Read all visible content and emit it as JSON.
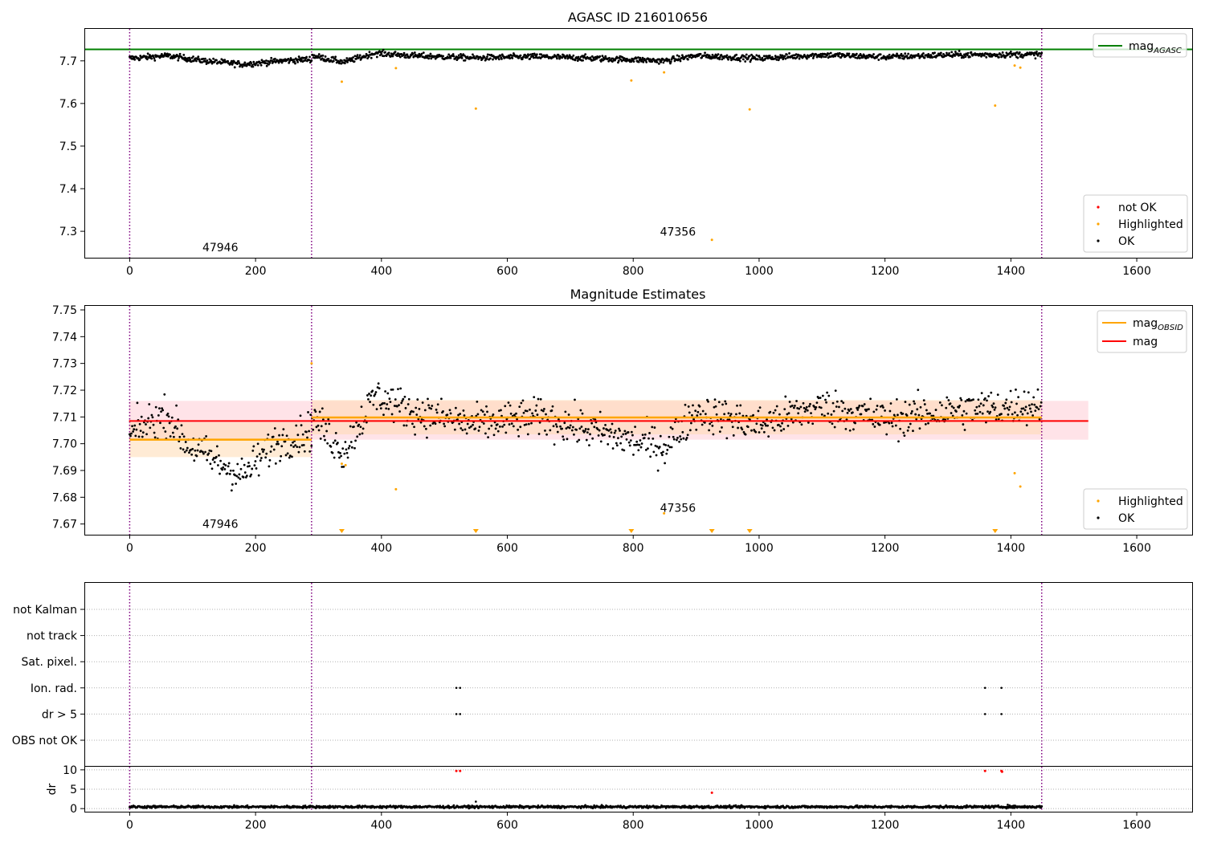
{
  "colors": {
    "ok": "#000000",
    "highlighted": "#ffa500",
    "not_ok": "#ff0000",
    "mag_agasc": "#008000",
    "mag_obsid": "#ffa500",
    "mag": "#ff0000",
    "obs_boundary": "#800080",
    "mag_band": "#ffc0cb",
    "obsid_band": "#ffdab3",
    "grid": "#b0b0b0"
  },
  "chart_data": [
    {
      "type": "scatter",
      "title": "AGASC ID 216010656",
      "xlim": [
        -72,
        1688
      ],
      "ylim": [
        7.238,
        7.775
      ],
      "xticks": [
        0,
        200,
        400,
        600,
        800,
        1000,
        1200,
        1400,
        1600
      ],
      "yticks": [
        7.3,
        7.4,
        7.5,
        7.6,
        7.7
      ],
      "mag_agasc": 7.727,
      "obs_boundaries": [
        0,
        289,
        1449
      ],
      "obsid_labels": [
        {
          "text": "47946",
          "x": 144,
          "y": 7.253
        },
        {
          "text": "47356",
          "x": 871,
          "y": 7.29
        }
      ],
      "legend_lines": [
        {
          "name": "mag",
          "subscript": "AGASC",
          "color": "#008000"
        }
      ],
      "legend_markers": [
        {
          "name": "not OK",
          "color": "#ff0000"
        },
        {
          "name": "Highlighted",
          "color": "#ffa500"
        },
        {
          "name": "OK",
          "color": "#000000"
        }
      ],
      "ok_series": {
        "x_range": [
          0,
          1449
        ],
        "segments": [
          {
            "x0": 0,
            "x1": 289,
            "levels": [
              [
                0,
                7.706
              ],
              [
                60,
                7.712
              ],
              [
                120,
                7.7
              ],
              [
                180,
                7.692
              ],
              [
                240,
                7.7
              ],
              [
                289,
                7.704
              ]
            ],
            "noise": 0.0035
          },
          {
            "x0": 290,
            "x1": 1449,
            "levels": [
              [
                290,
                7.712
              ],
              [
                340,
                7.697
              ],
              [
                390,
                7.718
              ],
              [
                450,
                7.712
              ],
              [
                550,
                7.707
              ],
              [
                650,
                7.71
              ],
              [
                800,
                7.703
              ],
              [
                850,
                7.7
              ],
              [
                900,
                7.712
              ],
              [
                1000,
                7.706
              ],
              [
                1100,
                7.714
              ],
              [
                1200,
                7.709
              ],
              [
                1300,
                7.714
              ],
              [
                1449,
                7.715
              ]
            ],
            "noise": 0.0035
          }
        ]
      },
      "highlighted": [
        {
          "x": 337,
          "y": 7.651
        },
        {
          "x": 423,
          "y": 7.683
        },
        {
          "x": 550,
          "y": 7.588
        },
        {
          "x": 797,
          "y": 7.654
        },
        {
          "x": 849,
          "y": 7.673
        },
        {
          "x": 925,
          "y": 7.28
        },
        {
          "x": 985,
          "y": 7.586
        },
        {
          "x": 1375,
          "y": 7.595
        },
        {
          "x": 1406,
          "y": 7.689
        },
        {
          "x": 1415,
          "y": 7.684
        }
      ]
    },
    {
      "type": "scatter",
      "title": "Magnitude Estimates",
      "xlim": [
        -72,
        1688
      ],
      "ylim": [
        7.666,
        7.7515
      ],
      "xticks": [
        0,
        200,
        400,
        600,
        800,
        1000,
        1200,
        1400,
        1600
      ],
      "yticks": [
        7.67,
        7.68,
        7.69,
        7.7,
        7.71,
        7.72,
        7.73,
        7.74,
        7.75
      ],
      "mag": {
        "value": 7.7085,
        "band": [
          7.7015,
          7.716
        ],
        "x_range": [
          -1,
          1523
        ]
      },
      "mag_obsid": [
        {
          "x0": 0,
          "x1": 289,
          "value": 7.7015,
          "band": [
            7.695,
            7.708
          ]
        },
        {
          "x0": 289,
          "x1": 1449,
          "value": 7.7098,
          "band": [
            7.7035,
            7.7163
          ]
        }
      ],
      "obs_boundaries": [
        0,
        289,
        1449
      ],
      "obsid_labels": [
        {
          "text": "47946",
          "x": 144,
          "y": 7.6685
        },
        {
          "text": "47356",
          "x": 871,
          "y": 7.6745
        }
      ],
      "legend_lines": [
        {
          "name": "mag",
          "subscript": "OBSID",
          "color": "#ffa500"
        },
        {
          "name": "mag",
          "subscript": "",
          "color": "#ff0000"
        }
      ],
      "legend_markers": [
        {
          "name": "Highlighted",
          "color": "#ffa500"
        },
        {
          "name": "OK",
          "color": "#000000"
        }
      ],
      "ok_series": {
        "segments": [
          {
            "x0": 0,
            "x1": 289,
            "levels": [
              [
                0,
                7.703
              ],
              [
                30,
                7.708
              ],
              [
                60,
                7.711
              ],
              [
                90,
                7.7
              ],
              [
                140,
                7.693
              ],
              [
                180,
                7.688
              ],
              [
                230,
                7.7
              ],
              [
                289,
                7.705
              ]
            ],
            "noise": 0.0035
          },
          {
            "x0": 290,
            "x1": 1449,
            "levels": [
              [
                290,
                7.71
              ],
              [
                340,
                7.697
              ],
              [
                390,
                7.718
              ],
              [
                450,
                7.712
              ],
              [
                550,
                7.707
              ],
              [
                650,
                7.71
              ],
              [
                800,
                7.701
              ],
              [
                850,
                7.699
              ],
              [
                900,
                7.712
              ],
              [
                1000,
                7.707
              ],
              [
                1100,
                7.714
              ],
              [
                1200,
                7.709
              ],
              [
                1300,
                7.712
              ],
              [
                1449,
                7.715
              ]
            ],
            "noise": 0.0035
          }
        ]
      },
      "highlighted": [
        {
          "x": 289,
          "y": 7.73
        },
        {
          "x": 337,
          "y": 7.6925
        },
        {
          "x": 343,
          "y": 7.692
        },
        {
          "x": 423,
          "y": 7.683
        },
        {
          "x": 849,
          "y": 7.674
        },
        {
          "x": 1406,
          "y": 7.689
        },
        {
          "x": 1415,
          "y": 7.684
        }
      ],
      "below_axis_markers": [
        337,
        550,
        797,
        925,
        985,
        1375
      ]
    },
    {
      "type": "scatter",
      "title": "",
      "xlim": [
        -72,
        1688
      ],
      "flag_rows": [
        "not Kalman",
        "not track",
        "Sat. pixel.",
        "Ion. rad.",
        "dr > 5",
        "OBS not OK"
      ],
      "flag_points": {
        "Ion. rad.": [
          519,
          525,
          1359,
          1385
        ],
        "dr > 5": [
          519,
          525,
          1359,
          1385
        ]
      },
      "obs_boundaries": [
        0,
        289,
        1449
      ]
    },
    {
      "type": "scatter",
      "title": "",
      "xlim": [
        -72,
        1688
      ],
      "ylim": [
        -0.8,
        10.8
      ],
      "xticks": [
        0,
        200,
        400,
        600,
        800,
        1000,
        1200,
        1400,
        1600
      ],
      "yticks": [
        0,
        5,
        10
      ],
      "ylabel": "dr",
      "dr_series": {
        "x_range": [
          0,
          1449
        ],
        "mean": 0.45,
        "noise": 0.25
      },
      "dr_extra": [
        {
          "x": 550,
          "y": 1.8
        },
        {
          "x": 1395,
          "y": 1.0
        }
      ],
      "not_ok": [
        {
          "x": 519,
          "y": 9.7
        },
        {
          "x": 525,
          "y": 9.7
        },
        {
          "x": 925,
          "y": 4.1
        },
        {
          "x": 1359,
          "y": 9.7
        },
        {
          "x": 1385,
          "y": 9.7
        },
        {
          "x": 1386,
          "y": 9.5
        }
      ],
      "obs_boundaries": [
        0,
        289,
        1449
      ]
    }
  ]
}
